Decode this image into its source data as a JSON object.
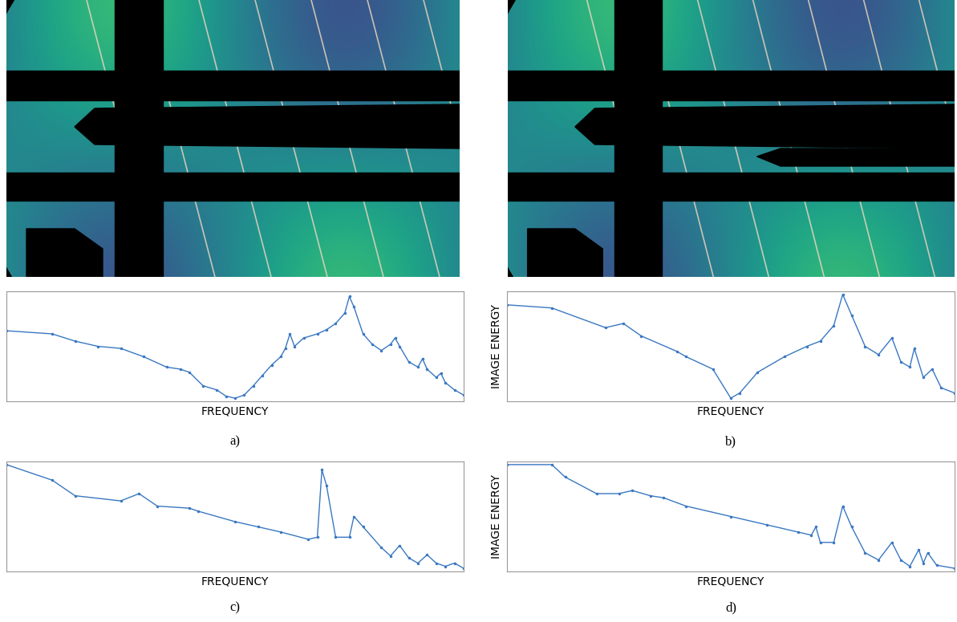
{
  "chart_data": [
    {
      "type": "line",
      "caption": "a)",
      "xlabel": "FREQUENCY",
      "color": "#3a78c2",
      "marker": ".",
      "tick_labels": false,
      "xlim": [
        0,
        100
      ],
      "ylim": [
        -3,
        103
      ],
      "x": [
        0,
        10,
        15,
        20,
        25,
        30,
        35,
        38,
        40,
        43,
        46,
        48,
        50,
        52,
        54,
        56,
        58,
        60,
        61,
        62,
        63,
        65,
        68,
        70,
        72,
        74,
        75,
        76,
        78,
        80,
        82,
        84,
        85,
        86,
        88,
        90,
        91,
        92,
        94,
        95,
        96,
        98,
        100
      ],
      "values": [
        65,
        62,
        55,
        50,
        48,
        40,
        30,
        28,
        25,
        12,
        8,
        2,
        0,
        3,
        12,
        22,
        32,
        40,
        48,
        62,
        50,
        58,
        62,
        66,
        72,
        82,
        98,
        88,
        62,
        52,
        46,
        52,
        58,
        50,
        35,
        30,
        38,
        28,
        20,
        24,
        15,
        8,
        3
      ]
    },
    {
      "type": "line",
      "caption": "b)",
      "xlabel": "FREQUENCY",
      "ylabel": "IMAGE ENERGY",
      "color": "#3a78c2",
      "marker": ".",
      "tick_labels": false,
      "xlim": [
        0,
        100
      ],
      "ylim": [
        -3,
        103
      ],
      "x": [
        0,
        10,
        22,
        26,
        30,
        38,
        40,
        46,
        50,
        52,
        56,
        62,
        67,
        70,
        73,
        75,
        77,
        80,
        83,
        86,
        88,
        90,
        91,
        93,
        95,
        97,
        100
      ],
      "values": [
        90,
        87,
        68,
        72,
        60,
        45,
        40,
        28,
        0,
        5,
        25,
        40,
        50,
        55,
        70,
        100,
        80,
        50,
        42,
        58,
        35,
        30,
        48,
        20,
        28,
        10,
        5
      ]
    },
    {
      "type": "line",
      "caption": "c)",
      "xlabel": "FREQUENCY",
      "color": "#3a78c2",
      "marker": ".",
      "tick_labels": false,
      "xlim": [
        0,
        100
      ],
      "ylim": [
        -3,
        103
      ],
      "x": [
        0,
        10,
        15,
        25,
        29,
        33,
        40,
        42,
        50,
        55,
        60,
        66,
        68,
        69,
        70,
        72,
        75,
        76,
        78,
        82,
        84,
        86,
        88,
        90,
        92,
        94,
        96,
        98,
        100
      ],
      "values": [
        100,
        85,
        70,
        65,
        72,
        60,
        58,
        55,
        45,
        40,
        35,
        28,
        30,
        95,
        80,
        30,
        30,
        50,
        40,
        20,
        12,
        22,
        10,
        5,
        13,
        5,
        2,
        5,
        0
      ]
    },
    {
      "type": "line",
      "caption": "d)",
      "xlabel": "FREQUENCY",
      "ylabel": "IMAGE ENERGY",
      "color": "#3a78c2",
      "marker": ".",
      "tick_labels": false,
      "xlim": [
        0,
        100
      ],
      "ylim": [
        -3,
        103
      ],
      "x": [
        0,
        10,
        13,
        20,
        25,
        28,
        32,
        35,
        40,
        50,
        58,
        65,
        68,
        69,
        70,
        73,
        75,
        77,
        80,
        83,
        86,
        88,
        90,
        92,
        93,
        94,
        96,
        100
      ],
      "values": [
        100,
        100,
        88,
        72,
        72,
        75,
        70,
        68,
        60,
        50,
        42,
        35,
        32,
        40,
        25,
        25,
        60,
        40,
        15,
        8,
        25,
        8,
        2,
        18,
        5,
        15,
        3,
        0
      ]
    }
  ]
}
